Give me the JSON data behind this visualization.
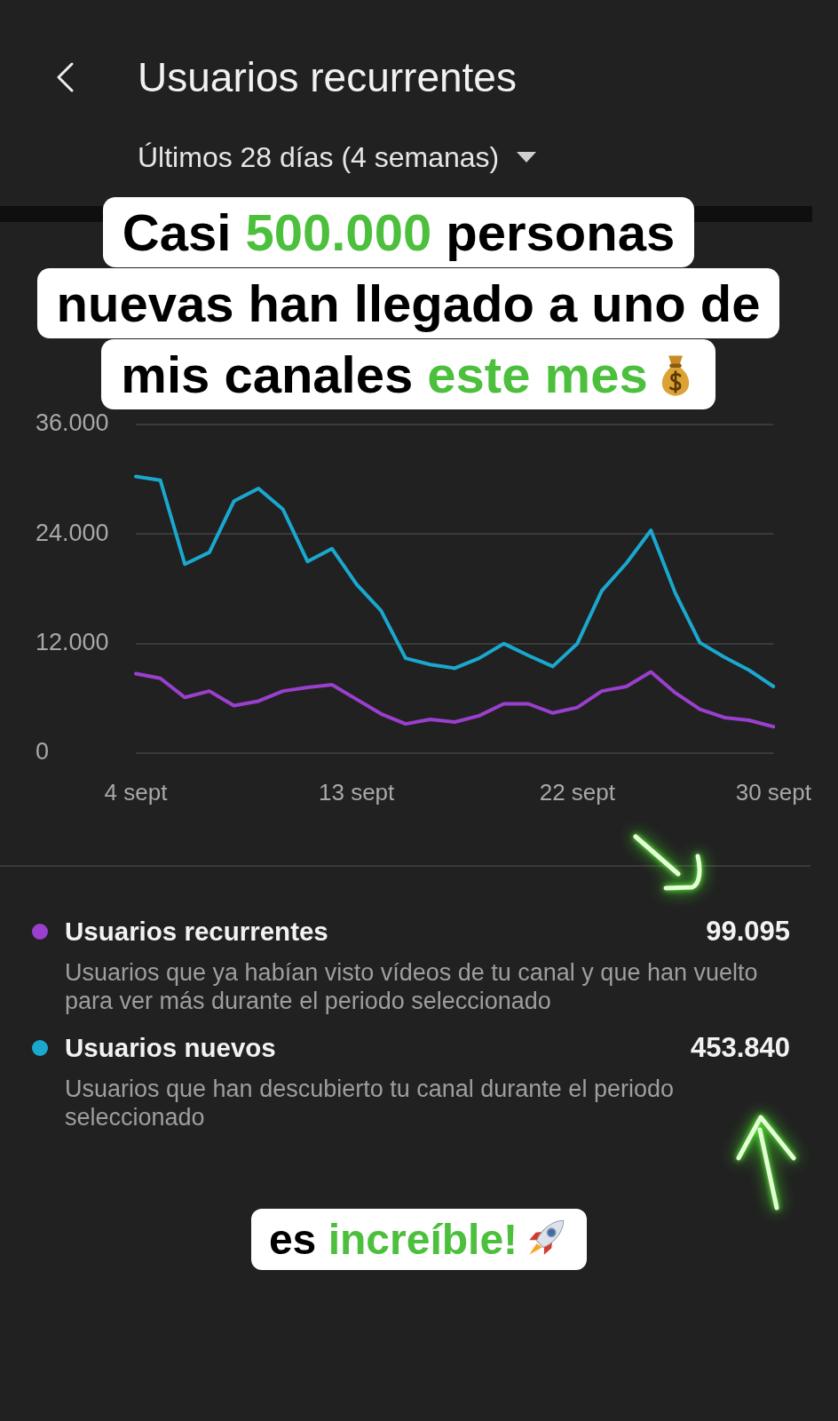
{
  "chart_data": {
    "type": "line",
    "title": "Usuarios recurrentes",
    "subtitle": "Últimos 28 días (4 semanas)",
    "categories": [
      "4 sept",
      null,
      null,
      null,
      null,
      null,
      null,
      null,
      null,
      "13 sept",
      null,
      null,
      null,
      null,
      null,
      null,
      null,
      null,
      "22 sept",
      null,
      null,
      null,
      null,
      null,
      null,
      null,
      "30 sept"
    ],
    "series": [
      {
        "name": "Usuarios recurrentes",
        "color": "#9b3fce",
        "values": [
          8700,
          8200,
          6100,
          6800,
          5200,
          5700,
          6800,
          7200,
          7500,
          5900,
          4300,
          3200,
          3700,
          3400,
          4100,
          5400,
          5400,
          4400,
          5000,
          6800,
          7300,
          8900,
          6600,
          4800,
          3900,
          3600,
          2900
        ]
      },
      {
        "name": "Usuarios nuevos",
        "color": "#1aa8cf",
        "values": [
          30300,
          29900,
          20700,
          22000,
          27600,
          29000,
          26700,
          21000,
          22400,
          18500,
          15600,
          10400,
          9700,
          9300,
          10400,
          12000,
          10700,
          9500,
          12000,
          17800,
          20800,
          24400,
          17500,
          12100,
          10500,
          9100,
          7300
        ]
      }
    ],
    "ylim": [
      0,
      36000
    ],
    "yticks": [
      0,
      {
        "value": 12000,
        "label": "12.000"
      },
      {
        "value": 24000,
        "label": "24.000"
      },
      {
        "value": 36000,
        "label": "36.000"
      }
    ],
    "grid": "y",
    "legend": "bottom",
    "annotations": [
      "Casi 500.000 personas nuevas han llegado a uno de mis canales este mes",
      "99.095",
      "Usuarios que ya habían visto vídeos de tu canal y que han vuelto para ver más durante el periodo seleccionado",
      "453.840",
      "Usuarios que han descubierto tu canal durante el periodo seleccionado",
      "es increíble!"
    ]
  }
}
